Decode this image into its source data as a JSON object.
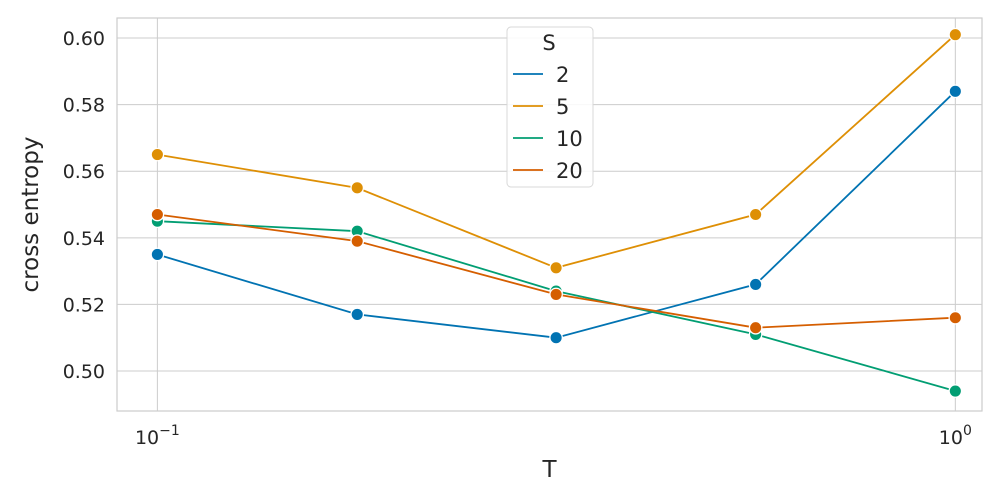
{
  "chart_data": {
    "type": "line",
    "xlabel": "T",
    "ylabel": "cross entropy",
    "x_scale": "log",
    "x": [
      0.1,
      0.178,
      0.316,
      0.562,
      1.0
    ],
    "xlim": [
      0.089,
      1.08
    ],
    "ylim": [
      0.488,
      0.606
    ],
    "xticks": [
      0.1,
      1.0
    ],
    "xtick_labels": [
      {
        "base": "10",
        "exp": "−1"
      },
      {
        "base": "10",
        "exp": "0"
      }
    ],
    "yticks": [
      0.5,
      0.52,
      0.54,
      0.56,
      0.58,
      0.6
    ],
    "ytick_labels": [
      "0.50",
      "0.52",
      "0.54",
      "0.56",
      "0.58",
      "0.60"
    ],
    "grid": true,
    "legend": {
      "title": "S",
      "placement": "top-center"
    },
    "series": [
      {
        "name": "2",
        "color": "#0173b2",
        "values": [
          0.535,
          0.517,
          0.51,
          0.526,
          0.584
        ]
      },
      {
        "name": "5",
        "color": "#de8f05",
        "values": [
          0.565,
          0.555,
          0.531,
          0.547,
          0.601
        ]
      },
      {
        "name": "10",
        "color": "#029e73",
        "values": [
          0.545,
          0.542,
          0.524,
          0.511,
          0.494
        ]
      },
      {
        "name": "20",
        "color": "#d55e00",
        "values": [
          0.547,
          0.539,
          0.523,
          0.513,
          0.516
        ]
      }
    ]
  }
}
